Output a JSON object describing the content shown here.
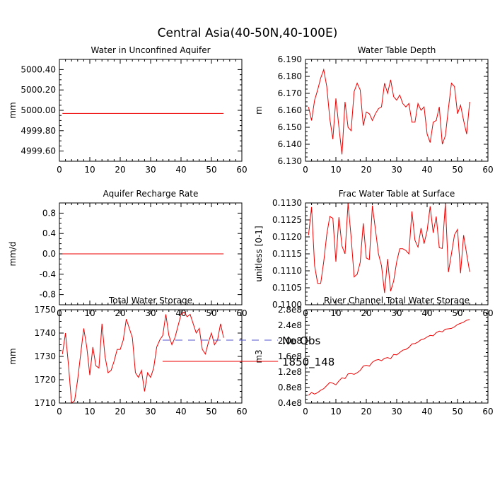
{
  "figure": {
    "title": "Central Asia(40-50N,40-100E)",
    "legend": [
      {
        "label": "No Obs",
        "color": "#5555cc",
        "style": "dashed"
      },
      {
        "label": "1850_148",
        "color": "#ee0000",
        "style": "solid"
      }
    ]
  },
  "chart_data": [
    {
      "type": "line",
      "title": "Water in Unconfined Aquifer",
      "ylabel": "mm",
      "xlim": [
        0,
        60
      ],
      "ylim": [
        4999.5,
        5000.5
      ],
      "xticks": [
        0,
        10,
        20,
        30,
        40,
        50,
        60
      ],
      "yticks": [
        4999.6,
        4999.8,
        5000.0,
        5000.2,
        5000.4
      ],
      "ytick_labels": [
        "4999.60",
        "4999.80",
        "5000.00",
        "5000.20",
        "5000.40"
      ],
      "series": [
        {
          "name": "1850_148",
          "x": [
            1,
            54
          ],
          "y": [
            4999.97,
            4999.97
          ]
        }
      ]
    },
    {
      "type": "line",
      "title": "Water Table Depth",
      "ylabel": "m",
      "xlim": [
        0,
        60
      ],
      "ylim": [
        6.13,
        6.19
      ],
      "xticks": [
        0,
        10,
        20,
        30,
        40,
        50,
        60
      ],
      "yticks": [
        6.13,
        6.14,
        6.15,
        6.16,
        6.17,
        6.18,
        6.19
      ],
      "ytick_labels": [
        "6.130",
        "6.140",
        "6.150",
        "6.160",
        "6.170",
        "6.180",
        "6.190"
      ],
      "series": [
        {
          "name": "1850_148",
          "x": [
            1,
            2,
            3,
            4,
            5,
            6,
            7,
            8,
            9,
            10,
            11,
            12,
            13,
            14,
            15,
            16,
            17,
            18,
            19,
            20,
            21,
            22,
            23,
            24,
            25,
            26,
            27,
            28,
            29,
            30,
            31,
            32,
            33,
            34,
            35,
            36,
            37,
            38,
            39,
            40,
            41,
            42,
            43,
            44,
            45,
            46,
            47,
            48,
            49,
            50,
            51,
            52,
            53,
            54
          ],
          "y": [
            6.162,
            6.154,
            6.166,
            6.172,
            6.179,
            6.184,
            6.174,
            6.155,
            6.143,
            6.167,
            6.15,
            6.134,
            6.165,
            6.15,
            6.148,
            6.171,
            6.176,
            6.172,
            6.151,
            6.159,
            6.158,
            6.154,
            6.158,
            6.161,
            6.162,
            6.176,
            6.17,
            6.178,
            6.168,
            6.166,
            6.169,
            6.164,
            6.162,
            6.164,
            6.153,
            6.153,
            6.164,
            6.16,
            6.162,
            6.146,
            6.141,
            6.153,
            6.154,
            6.162,
            6.14,
            6.145,
            6.161,
            6.176,
            6.174,
            6.158,
            6.163,
            6.154,
            6.146,
            6.165
          ]
        }
      ]
    },
    {
      "type": "line",
      "title": "Aquifer Recharge Rate",
      "ylabel": "mm/d",
      "xlim": [
        0,
        60
      ],
      "ylim": [
        -1.0,
        1.0
      ],
      "xticks": [
        0,
        10,
        20,
        30,
        40,
        50,
        60
      ],
      "yticks": [
        -0.8,
        -0.4,
        0.0,
        0.4,
        0.8
      ],
      "ytick_labels": [
        "-0.8",
        "-0.4",
        "0.0",
        "0.4",
        "0.8"
      ],
      "series": [
        {
          "name": "1850_148",
          "x": [
            1,
            54
          ],
          "y": [
            0.0,
            0.0
          ]
        }
      ]
    },
    {
      "type": "line",
      "title": "Frac Water Table at Surface",
      "ylabel": "unitless [0-1]",
      "xlim": [
        0,
        60
      ],
      "ylim": [
        0.11,
        0.113
      ],
      "xticks": [
        0,
        10,
        20,
        30,
        40,
        50,
        60
      ],
      "yticks": [
        0.11,
        0.1105,
        0.111,
        0.1115,
        0.112,
        0.1125,
        0.113
      ],
      "ytick_labels": [
        "0.1100",
        "0.1105",
        "0.1110",
        "0.1115",
        "0.1120",
        "0.1125",
        "0.1130"
      ],
      "series": [
        {
          "name": "1850_148",
          "x": [
            1,
            2,
            3,
            4,
            5,
            6,
            7,
            8,
            9,
            10,
            11,
            12,
            13,
            14,
            15,
            16,
            17,
            18,
            19,
            20,
            21,
            22,
            23,
            24,
            25,
            26,
            27,
            28,
            29,
            30,
            31,
            32,
            33,
            34,
            35,
            36,
            37,
            38,
            39,
            40,
            41,
            42,
            43,
            44,
            45,
            46,
            47,
            48,
            49,
            50,
            51,
            52,
            53,
            54
          ],
          "y": [
            0.11205,
            0.11288,
            0.11115,
            0.11063,
            0.11063,
            0.11127,
            0.11207,
            0.1126,
            0.11255,
            0.11127,
            0.11258,
            0.11173,
            0.1115,
            0.11299,
            0.112,
            0.11082,
            0.1109,
            0.11125,
            0.1124,
            0.11138,
            0.11133,
            0.11292,
            0.11222,
            0.1115,
            0.11115,
            0.11035,
            0.11135,
            0.1104,
            0.1107,
            0.11127,
            0.11165,
            0.11165,
            0.1116,
            0.1115,
            0.11275,
            0.1119,
            0.1117,
            0.11226,
            0.1118,
            0.11218,
            0.1129,
            0.11212,
            0.1126,
            0.11168,
            0.11166,
            0.11298,
            0.11096,
            0.1115,
            0.11206,
            0.11222,
            0.11093,
            0.11205,
            0.1115,
            0.11097
          ]
        }
      ]
    },
    {
      "type": "line",
      "title": "Total Water Storage",
      "ylabel": "mm",
      "xlim": [
        0,
        60
      ],
      "ylim": [
        1710,
        1750
      ],
      "xticks": [
        0,
        10,
        20,
        30,
        40,
        50,
        60
      ],
      "yticks": [
        1710,
        1720,
        1730,
        1740,
        1750
      ],
      "ytick_labels": [
        "1710",
        "1720",
        "1730",
        "1740",
        "1750"
      ],
      "series": [
        {
          "name": "1850_148",
          "x": [
            1,
            2,
            3,
            4,
            5,
            6,
            7,
            8,
            9,
            10,
            11,
            12,
            13,
            14,
            15,
            16,
            17,
            18,
            19,
            20,
            21,
            22,
            23,
            24,
            25,
            26,
            27,
            28,
            29,
            30,
            31,
            32,
            33,
            34,
            35,
            36,
            37,
            38,
            39,
            40,
            41,
            42,
            43,
            44,
            45,
            46,
            47,
            48,
            49,
            50,
            51,
            52,
            53,
            54
          ],
          "y": [
            1731,
            1740,
            1726,
            1710,
            1711,
            1720,
            1731,
            1742,
            1734,
            1722,
            1734,
            1726,
            1725,
            1744,
            1730,
            1723,
            1724,
            1728,
            1733,
            1733,
            1737,
            1746,
            1742,
            1738,
            1723,
            1721,
            1724,
            1715,
            1723,
            1721,
            1725,
            1734,
            1737,
            1739,
            1748,
            1739,
            1735,
            1738,
            1743,
            1748,
            1749,
            1747,
            1748,
            1744,
            1740,
            1742,
            1733,
            1731,
            1736,
            1740,
            1735,
            1737,
            1744,
            1738
          ]
        }
      ]
    },
    {
      "type": "line",
      "title": "River Channel Total Water Storage",
      "ylabel": "m3",
      "xlim": [
        0,
        60
      ],
      "ylim": [
        40000000,
        280000000
      ],
      "xticks": [
        0,
        10,
        20,
        30,
        40,
        50,
        60
      ],
      "yticks": [
        40000000,
        80000000,
        120000000,
        160000000,
        200000000,
        240000000,
        280000000
      ],
      "ytick_labels": [
        "0.4e8",
        "0.8e8",
        "1.2e8",
        "1.6e8",
        "2.0e8",
        "2.4e8",
        "2.8e8"
      ],
      "series": [
        {
          "name": "1850_148",
          "x": [
            1,
            2,
            3,
            4,
            5,
            6,
            7,
            8,
            9,
            10,
            11,
            12,
            13,
            14,
            15,
            16,
            17,
            18,
            19,
            20,
            21,
            22,
            23,
            24,
            25,
            26,
            27,
            28,
            29,
            30,
            31,
            32,
            33,
            34,
            35,
            36,
            37,
            38,
            39,
            40,
            41,
            42,
            43,
            44,
            45,
            46,
            47,
            48,
            49,
            50,
            51,
            52,
            53,
            54
          ],
          "y": [
            60000000,
            67000000,
            63000000,
            67000000,
            73000000,
            77000000,
            85000000,
            93000000,
            91000000,
            87000000,
            97000000,
            105000000,
            103000000,
            115000000,
            116000000,
            114000000,
            118000000,
            124000000,
            135000000,
            137000000,
            135000000,
            145000000,
            150000000,
            152000000,
            149000000,
            155000000,
            157000000,
            154000000,
            165000000,
            164000000,
            170000000,
            176000000,
            178000000,
            183000000,
            192000000,
            193000000,
            197000000,
            203000000,
            205000000,
            210000000,
            214000000,
            213000000,
            221000000,
            225000000,
            223000000,
            230000000,
            231000000,
            232000000,
            236000000,
            242000000,
            245000000,
            248000000,
            253000000,
            255000000
          ]
        }
      ]
    }
  ]
}
